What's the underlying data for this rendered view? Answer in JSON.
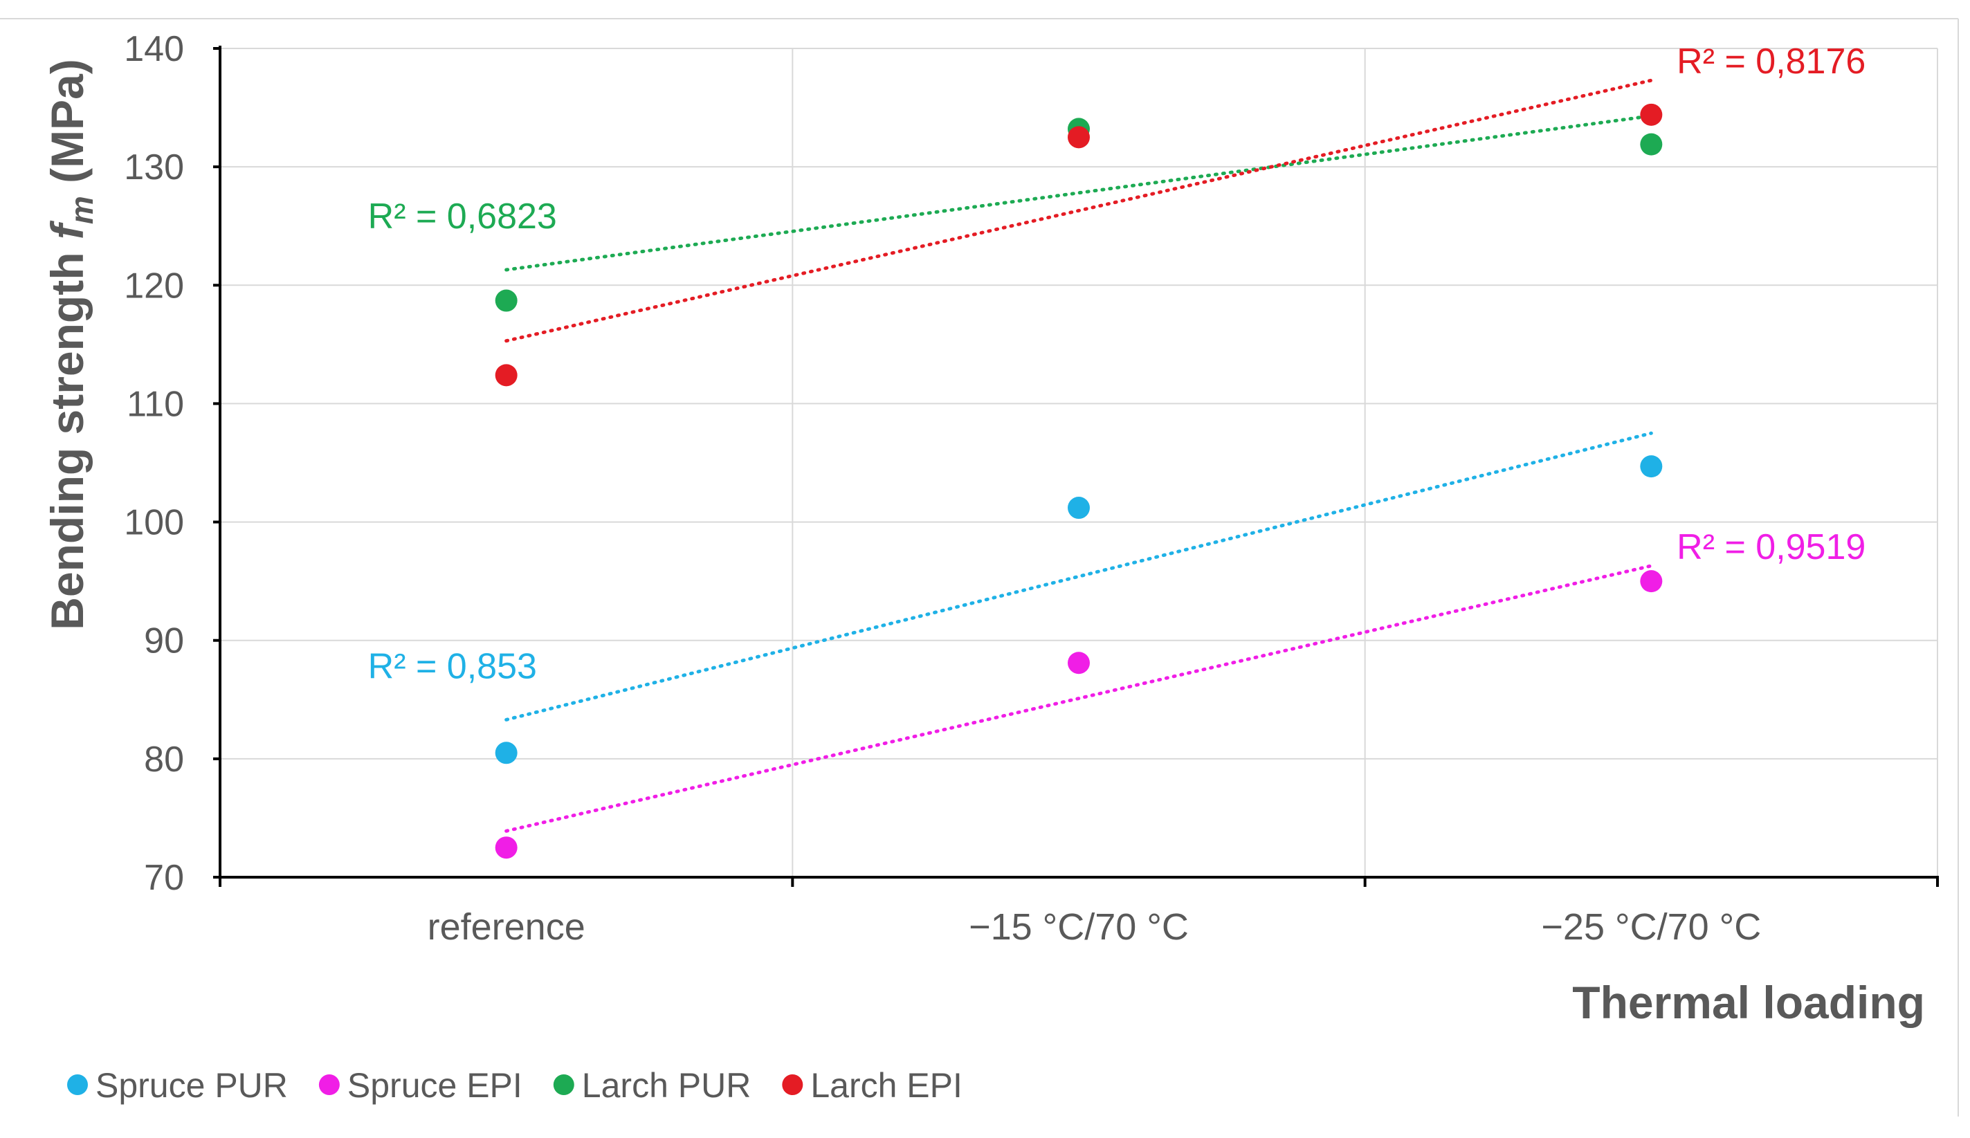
{
  "chart_data": {
    "type": "scatter",
    "xlabel": "Thermal loading",
    "ylabel_main": "Bending strength ",
    "ylabel_symbol": "f",
    "ylabel_subscript": "m",
    "ylabel_unit": " (MPa)",
    "ylim": [
      70,
      140
    ],
    "yticks": [
      70,
      80,
      90,
      100,
      110,
      120,
      130,
      140
    ],
    "categories": [
      "reference",
      "−15 °C/70 °C",
      "−25 °C/70 °C"
    ],
    "grid": true,
    "legend_position": "bottom-left",
    "series": [
      {
        "name": "Spruce PUR",
        "color": "#1FB1E6",
        "values": [
          80.5,
          101.2,
          104.7
        ],
        "trend": [
          83.3,
          95.4,
          107.5
        ],
        "r2_label": "R² = 0,853",
        "r2_anchor": "start"
      },
      {
        "name": "Spruce EPI",
        "color": "#F01EE6",
        "values": [
          72.5,
          88.1,
          95.0
        ],
        "trend": [
          73.9,
          85.1,
          96.3
        ],
        "r2_label": "R² = 0,9519",
        "r2_anchor": "end"
      },
      {
        "name": "Larch PUR",
        "color": "#1DAA53",
        "values": [
          118.7,
          133.2,
          131.9
        ],
        "trend": [
          121.3,
          127.8,
          134.3
        ],
        "r2_label": "R² = 0,6823",
        "r2_anchor": "start"
      },
      {
        "name": "Larch EPI",
        "color": "#E41C24",
        "values": [
          112.4,
          132.5,
          134.4
        ],
        "trend": [
          115.3,
          126.3,
          137.3
        ],
        "r2_label": "R² = 0,8176",
        "r2_anchor": "end"
      }
    ]
  }
}
